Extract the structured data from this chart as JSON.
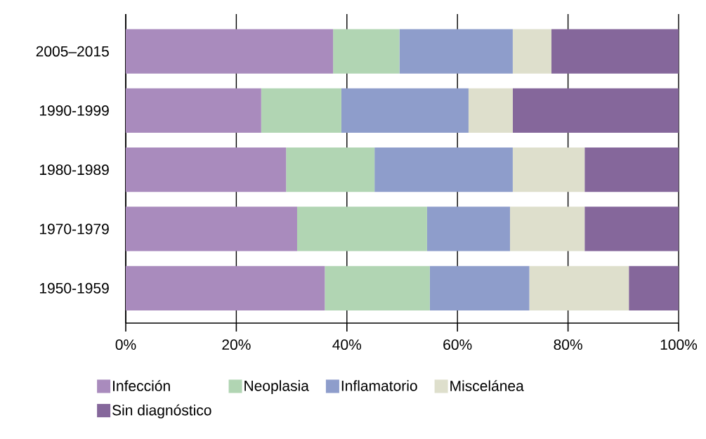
{
  "chart_data": {
    "type": "bar",
    "orientation": "horizontal",
    "stacked": true,
    "categories": [
      "2005–2015",
      "1990-1999",
      "1980-1989",
      "1970-1979",
      "1950-1959"
    ],
    "series": [
      {
        "name": "Infección",
        "color": "#a98bbd",
        "values": [
          37.5,
          24.5,
          29,
          31,
          36
        ]
      },
      {
        "name": "Neoplasia",
        "color": "#b1d5b3",
        "values": [
          12,
          14.5,
          16,
          23.5,
          19
        ]
      },
      {
        "name": "Inflamatorio",
        "color": "#8e9dcb",
        "values": [
          20.5,
          23,
          25,
          15,
          18
        ]
      },
      {
        "name": "Miscelánea",
        "color": "#dedfcc",
        "values": [
          7,
          8,
          13,
          13.5,
          18
        ]
      },
      {
        "name": "Sin diagnóstico",
        "color": "#85679b",
        "values": [
          23,
          30,
          17,
          17,
          9
        ]
      }
    ],
    "xlim": [
      0,
      100
    ],
    "xticks": [
      {
        "value": 0,
        "label": "0%"
      },
      {
        "value": 20,
        "label": "20%"
      },
      {
        "value": 40,
        "label": "40%"
      },
      {
        "value": 60,
        "label": "60%"
      },
      {
        "value": 80,
        "label": "80%"
      },
      {
        "value": 100,
        "label": "100%"
      }
    ],
    "grid": "x",
    "legend": "bottom"
  }
}
